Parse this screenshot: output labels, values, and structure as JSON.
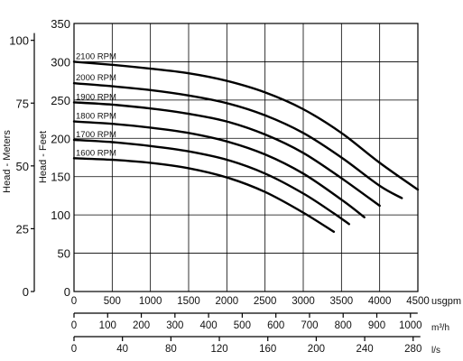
{
  "chart_data": {
    "type": "line",
    "title": "",
    "xlabel": "usgpm",
    "ylabel": "Head - Feet",
    "xlim": [
      0,
      4500
    ],
    "ylim": [
      0,
      350
    ],
    "x_ticks": [
      0,
      500,
      1000,
      1500,
      2000,
      2500,
      3000,
      3500,
      4000,
      4500
    ],
    "y_ticks": [
      0,
      50,
      100,
      150,
      200,
      250,
      300,
      350
    ],
    "grid": true,
    "secondary_y": {
      "label": "Head - Meters",
      "ticks": [
        0,
        25,
        50,
        75,
        100
      ]
    },
    "secondary_x": [
      {
        "unit": "m³/h",
        "ticks": [
          0,
          100,
          200,
          300,
          400,
          500,
          600,
          700,
          800,
          900,
          1000
        ]
      },
      {
        "unit": "l/s",
        "ticks": [
          0,
          40,
          80,
          120,
          160,
          200,
          240,
          280
        ]
      }
    ],
    "series": [
      {
        "name": "2100 RPM",
        "x": [
          0,
          500,
          1000,
          1500,
          2000,
          2500,
          3000,
          3500,
          4000,
          4500
        ],
        "y": [
          300,
          296,
          291,
          285,
          275,
          260,
          238,
          207,
          168,
          133
        ]
      },
      {
        "name": "2000 RPM",
        "x": [
          0,
          500,
          1000,
          1500,
          2000,
          2500,
          3000,
          3500,
          4000,
          4290
        ],
        "y": [
          272,
          268,
          263,
          256,
          246,
          230,
          207,
          175,
          138,
          122
        ]
      },
      {
        "name": "1900 RPM",
        "x": [
          0,
          500,
          1000,
          1500,
          2000,
          2500,
          3000,
          3500,
          4000
        ],
        "y": [
          247,
          244,
          239,
          232,
          222,
          205,
          181,
          148,
          112
        ]
      },
      {
        "name": "1800 RPM",
        "x": [
          0,
          500,
          1000,
          1500,
          2000,
          2500,
          3000,
          3500,
          3800
        ],
        "y": [
          222,
          219,
          214,
          207,
          196,
          179,
          154,
          120,
          97
        ]
      },
      {
        "name": "1700 RPM",
        "x": [
          0,
          500,
          1000,
          1500,
          2000,
          2500,
          3000,
          3400,
          3600
        ],
        "y": [
          198,
          195,
          190,
          183,
          172,
          154,
          128,
          102,
          88
        ]
      },
      {
        "name": "1600 RPM",
        "x": [
          0,
          500,
          1000,
          1500,
          2000,
          2500,
          3000,
          3400
        ],
        "y": [
          174,
          172,
          168,
          161,
          149,
          130,
          103,
          78
        ]
      }
    ]
  }
}
